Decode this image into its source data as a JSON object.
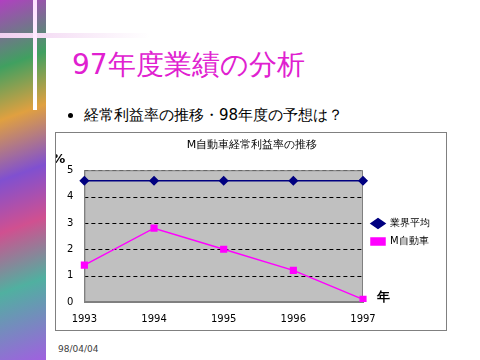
{
  "slide": {
    "title": "97年度業績の分析",
    "bullet": "経常利益率の推移・98年度の予想は？",
    "footer": "98/04/04"
  },
  "chart_data": {
    "type": "line",
    "title": "M自動車経常利益率の推移",
    "y_label": "%",
    "x_label": "年",
    "categories": [
      "1993",
      "1994",
      "1995",
      "1996",
      "1997"
    ],
    "series": [
      {
        "name": "業界平均",
        "color": "#000080",
        "marker": "diamond",
        "values": [
          4.6,
          4.6,
          4.6,
          4.6,
          4.6
        ]
      },
      {
        "name": "M自動車",
        "color": "#ff00ff",
        "marker": "square",
        "values": [
          1.4,
          2.8,
          2.0,
          1.2,
          0.1
        ]
      }
    ],
    "ylim": [
      0,
      5
    ],
    "yticks": [
      0,
      1,
      2,
      3,
      4,
      5
    ],
    "grid": true,
    "legend": "right"
  }
}
